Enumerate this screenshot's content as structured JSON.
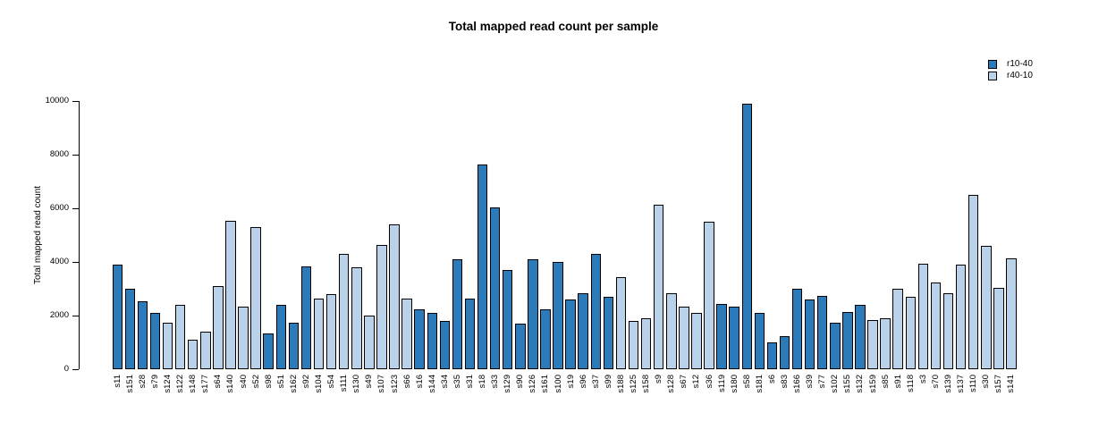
{
  "colors": {
    "r10-40": "#2b7bba",
    "r40-10": "#bad1ea",
    "bar_border": "#000000",
    "axis": "#000000"
  },
  "chart_data": {
    "type": "bar",
    "title": "Total mapped read count per sample",
    "xlabel": "",
    "ylabel": "Total mapped read count",
    "ylim": [
      0,
      10000
    ],
    "yticks": [
      0,
      2000,
      4000,
      6000,
      8000,
      10000
    ],
    "grid": false,
    "legend": {
      "position": "top-right",
      "entries": [
        {
          "label": "r10-40",
          "color": "#2b7bba"
        },
        {
          "label": "r40-10",
          "color": "#bad1ea"
        }
      ]
    },
    "categories": [
      "s11",
      "s151",
      "s28",
      "s79",
      "s124",
      "s122",
      "s148",
      "s177",
      "s64",
      "s140",
      "s40",
      "s52",
      "s98",
      "s51",
      "s162",
      "s92",
      "s104",
      "s54",
      "s111",
      "s130",
      "s49",
      "s107",
      "s123",
      "s66",
      "s16",
      "s144",
      "s34",
      "s35",
      "s31",
      "s18",
      "s33",
      "s129",
      "s90",
      "s126",
      "s161",
      "s100",
      "s19",
      "s96",
      "s37",
      "s99",
      "s188",
      "s125",
      "s158",
      "s9",
      "s128",
      "s67",
      "s12",
      "s36",
      "s119",
      "s180",
      "s58",
      "s181",
      "s6",
      "s83",
      "s166",
      "s39",
      "s77",
      "s102",
      "s155",
      "s132",
      "s159",
      "s85",
      "s91",
      "s118",
      "s3",
      "s70",
      "s139",
      "s137",
      "s110",
      "s30",
      "s157",
      "s141"
    ],
    "values": [
      3900,
      3000,
      2550,
      2100,
      1750,
      2400,
      1100,
      1400,
      3100,
      5550,
      2350,
      5300,
      1350,
      2400,
      1750,
      3850,
      2650,
      2800,
      4300,
      3800,
      2000,
      4650,
      5400,
      2650,
      2250,
      2100,
      1800,
      4100,
      2650,
      7650,
      6050,
      3700,
      1700,
      4100,
      2250,
      4000,
      2600,
      2850,
      4300,
      2700,
      3450,
      1800,
      1900,
      6150,
      2850,
      2350,
      2100,
      5500,
      2450,
      2350,
      9900,
      2100,
      1000,
      1250,
      3000,
      2600,
      2750,
      1750,
      2150,
      2400,
      1850,
      1900,
      3000,
      2700,
      3950,
      3250,
      2850,
      3900,
      6500,
      4600,
      3050,
      4150
    ],
    "groups": [
      "r10-40",
      "r10-40",
      "r10-40",
      "r10-40",
      "r40-10",
      "r40-10",
      "r40-10",
      "r40-10",
      "r40-10",
      "r40-10",
      "r40-10",
      "r40-10",
      "r10-40",
      "r10-40",
      "r10-40",
      "r10-40",
      "r40-10",
      "r40-10",
      "r40-10",
      "r40-10",
      "r40-10",
      "r40-10",
      "r40-10",
      "r40-10",
      "r10-40",
      "r10-40",
      "r10-40",
      "r10-40",
      "r10-40",
      "r10-40",
      "r10-40",
      "r10-40",
      "r10-40",
      "r10-40",
      "r10-40",
      "r10-40",
      "r10-40",
      "r10-40",
      "r10-40",
      "r10-40",
      "r40-10",
      "r40-10",
      "r40-10",
      "r40-10",
      "r40-10",
      "r40-10",
      "r40-10",
      "r40-10",
      "r10-40",
      "r10-40",
      "r10-40",
      "r10-40",
      "r10-40",
      "r10-40",
      "r10-40",
      "r10-40",
      "r10-40",
      "r10-40",
      "r10-40",
      "r10-40",
      "r40-10",
      "r40-10",
      "r40-10",
      "r40-10",
      "r40-10",
      "r40-10",
      "r40-10",
      "r40-10",
      "r40-10",
      "r40-10",
      "r40-10",
      "r40-10"
    ]
  }
}
